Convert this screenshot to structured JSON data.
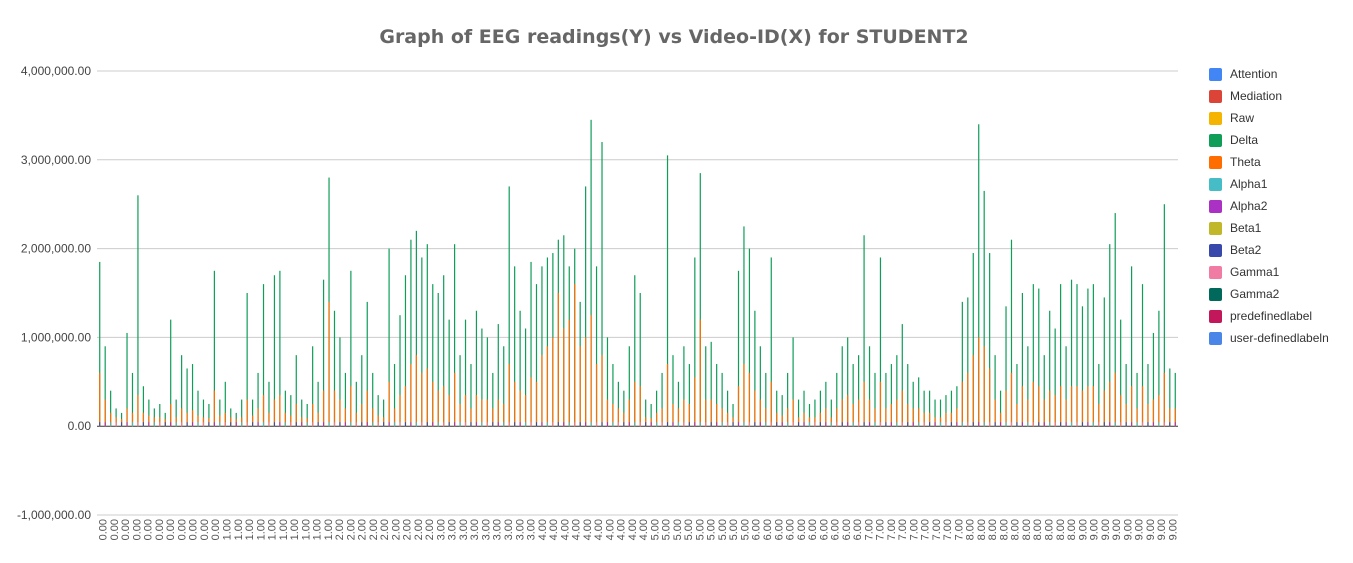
{
  "chart_data": {
    "type": "bar",
    "title": "Graph of EEG readings(Y) vs Video-ID(X) for STUDENT2",
    "xlabel": "",
    "ylabel": "",
    "ylim": [
      -1000000,
      4000000
    ],
    "yticks": [
      "-1,000,000.00",
      "0.00",
      "1,000,000.00",
      "2,000,000.00",
      "3,000,000.00",
      "4,000,000.00"
    ],
    "ytick_values": [
      -1000000,
      0,
      1000000,
      2000000,
      3000000,
      4000000
    ],
    "xtick_labels": [
      "0.00",
      "0.00",
      "0.00",
      "0.00",
      "0.00",
      "0.00",
      "0.00",
      "0.00",
      "0.00",
      "0.00",
      "0.00",
      "1.00",
      "1.00",
      "1.00",
      "1.00",
      "1.00",
      "1.00",
      "1.00",
      "1.00",
      "1.00",
      "1.00",
      "2.00",
      "2.00",
      "2.00",
      "2.00",
      "2.00",
      "2.00",
      "2.00",
      "2.00",
      "2.00",
      "3.00",
      "3.00",
      "3.00",
      "3.00",
      "3.00",
      "3.00",
      "3.00",
      "3.00",
      "3.00",
      "4.00",
      "4.00",
      "4.00",
      "4.00",
      "4.00",
      "4.00",
      "4.00",
      "4.00",
      "4.00",
      "4.00",
      "5.00",
      "5.00",
      "5.00",
      "5.00",
      "5.00",
      "5.00",
      "5.00",
      "5.00",
      "5.00",
      "6.00",
      "6.00",
      "6.00",
      "6.00",
      "6.00",
      "6.00",
      "6.00",
      "6.00",
      "6.00",
      "6.00",
      "7.00",
      "7.00",
      "7.00",
      "7.00",
      "7.00",
      "7.00",
      "7.00",
      "7.00",
      "7.00",
      "8.00",
      "8.00",
      "8.00",
      "8.00",
      "8.00",
      "8.00",
      "8.00",
      "8.00",
      "8.00",
      "8.00",
      "9.00",
      "9.00",
      "9.00",
      "9.00",
      "9.00",
      "9.00",
      "9.00",
      "9.00",
      "9.00"
    ],
    "grid": true,
    "legend_position": "right",
    "series": [
      {
        "name": "Attention",
        "color": "#4285F4"
      },
      {
        "name": "Mediation",
        "color": "#DB4437"
      },
      {
        "name": "Raw",
        "color": "#F4B400"
      },
      {
        "name": "Delta",
        "color": "#0F9D58",
        "values": [
          1850000,
          900000,
          400000,
          200000,
          150000,
          1050000,
          600000,
          2600000,
          450000,
          300000,
          200000,
          250000,
          150000,
          1200000,
          300000,
          800000,
          650000,
          700000,
          400000,
          300000,
          250000,
          1750000,
          300000,
          500000,
          200000,
          150000,
          300000,
          1500000,
          300000,
          600000,
          1600000,
          500000,
          1700000,
          1750000,
          400000,
          350000,
          800000,
          300000,
          250000,
          900000,
          500000,
          1650000,
          2800000,
          1300000,
          1000000,
          600000,
          1750000,
          500000,
          800000,
          1400000,
          600000,
          350000,
          300000,
          2000000,
          700000,
          1250000,
          1700000,
          2100000,
          2200000,
          1900000,
          2050000,
          1600000,
          1500000,
          1700000,
          1200000,
          2050000,
          800000,
          1200000,
          700000,
          1300000,
          1100000,
          1000000,
          600000,
          1150000,
          900000,
          2700000,
          1800000,
          1300000,
          1100000,
          1850000,
          1600000,
          1800000,
          1900000,
          1950000,
          2100000,
          2150000,
          1800000,
          2000000,
          1400000,
          2700000,
          3450000,
          1800000,
          3200000,
          1000000,
          700000,
          500000,
          400000,
          900000,
          1700000,
          1500000,
          300000,
          250000,
          400000,
          600000,
          3050000,
          800000,
          500000,
          900000,
          700000,
          1900000,
          2850000,
          900000,
          950000,
          700000,
          600000,
          400000,
          250000,
          1750000,
          2250000,
          2000000,
          1300000,
          900000,
          600000,
          1900000,
          400000,
          350000,
          600000,
          1000000,
          300000,
          400000,
          250000,
          300000,
          400000,
          500000,
          300000,
          600000,
          900000,
          1000000,
          700000,
          800000,
          2150000,
          900000,
          600000,
          1900000,
          600000,
          700000,
          800000,
          1150000,
          700000,
          500000,
          550000,
          400000,
          400000,
          300000,
          300000,
          350000,
          400000,
          450000,
          1400000,
          1450000,
          1950000,
          3400000,
          2650000,
          1950000,
          800000,
          400000,
          1350000,
          2100000,
          700000,
          1500000,
          900000,
          1600000,
          1550000,
          800000,
          1300000,
          1100000,
          1600000,
          900000,
          1650000,
          1600000,
          1350000,
          1550000,
          1600000,
          700000,
          1450000,
          2050000,
          2400000,
          1200000,
          700000,
          1800000,
          600000,
          1600000,
          700000,
          1050000,
          1300000,
          2500000,
          650000,
          600000
        ]
      },
      {
        "name": "Theta",
        "color": "#FF6D00",
        "values": [
          600000,
          300000,
          150000,
          100000,
          80000,
          200000,
          150000,
          350000,
          150000,
          120000,
          100000,
          100000,
          80000,
          250000,
          100000,
          200000,
          150000,
          180000,
          120000,
          100000,
          90000,
          400000,
          120000,
          150000,
          100000,
          80000,
          100000,
          300000,
          120000,
          200000,
          350000,
          150000,
          300000,
          350000,
          150000,
          120000,
          250000,
          100000,
          90000,
          250000,
          150000,
          400000,
          1400000,
          400000,
          300000,
          200000,
          450000,
          150000,
          250000,
          400000,
          200000,
          120000,
          100000,
          500000,
          200000,
          350000,
          450000,
          700000,
          800000,
          600000,
          650000,
          500000,
          400000,
          450000,
          350000,
          600000,
          250000,
          350000,
          200000,
          350000,
          300000,
          300000,
          200000,
          300000,
          250000,
          700000,
          500000,
          400000,
          350000,
          550000,
          500000,
          800000,
          900000,
          1000000,
          1500000,
          1100000,
          1200000,
          1600000,
          900000,
          1000000,
          1250000,
          700000,
          800000,
          300000,
          250000,
          200000,
          150000,
          300000,
          500000,
          450000,
          100000,
          90000,
          150000,
          200000,
          700000,
          250000,
          200000,
          300000,
          250000,
          550000,
          1200000,
          300000,
          300000,
          250000,
          200000,
          150000,
          100000,
          450000,
          700000,
          600000,
          400000,
          300000,
          200000,
          500000,
          150000,
          120000,
          200000,
          300000,
          100000,
          150000,
          100000,
          100000,
          150000,
          200000,
          100000,
          200000,
          300000,
          350000,
          250000,
          300000,
          500000,
          300000,
          200000,
          500000,
          200000,
          250000,
          300000,
          400000,
          250000,
          200000,
          200000,
          150000,
          150000,
          100000,
          100000,
          150000,
          150000,
          200000,
          500000,
          600000,
          800000,
          1000000,
          900000,
          650000,
          300000,
          150000,
          400000,
          600000,
          250000,
          450000,
          300000,
          500000,
          450000,
          300000,
          400000,
          350000,
          450000,
          300000,
          450000,
          450000,
          400000,
          450000,
          450000,
          250000,
          400000,
          500000,
          600000,
          350000,
          250000,
          450000,
          200000,
          450000,
          250000,
          300000,
          350000,
          600000,
          200000,
          200000
        ]
      },
      {
        "name": "Alpha1",
        "color": "#46BDC6"
      },
      {
        "name": "Alpha2",
        "color": "#AB30C4"
      },
      {
        "name": "Beta1",
        "color": "#C0B729"
      },
      {
        "name": "Beta2",
        "color": "#3949AB"
      },
      {
        "name": "Gamma1",
        "color": "#F07BA3"
      },
      {
        "name": "Gamma2",
        "color": "#00695C"
      },
      {
        "name": "predefinedlabel",
        "color": "#C2185B"
      },
      {
        "name": "user-definedlabeln",
        "color": "#4A86E8"
      }
    ]
  }
}
